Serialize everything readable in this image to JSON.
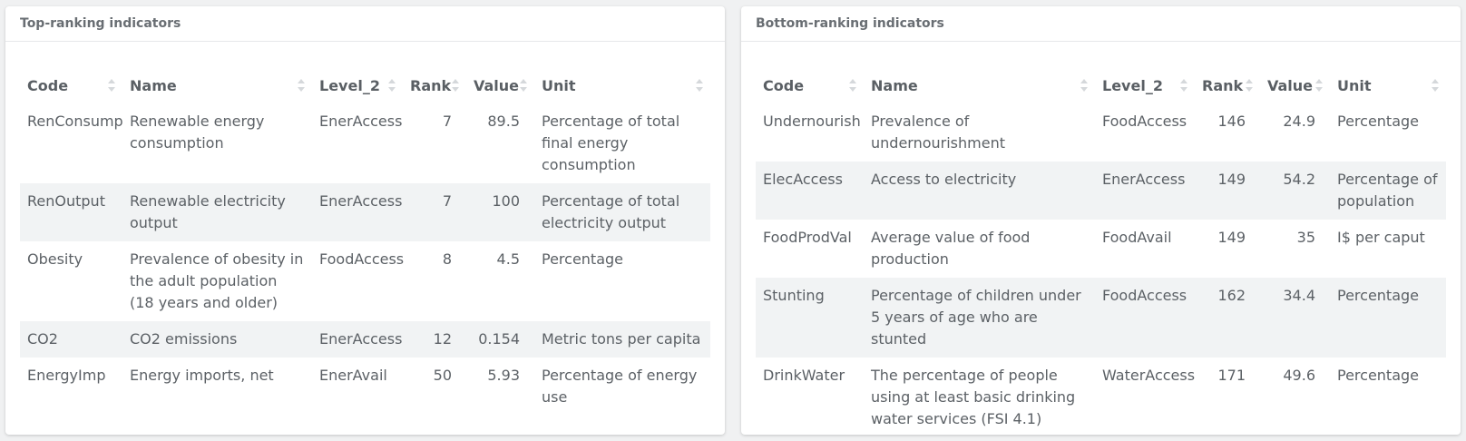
{
  "left_panel": {
    "title": "Top-ranking indicators",
    "columns": [
      "Code",
      "Name",
      "Level_2",
      "Rank",
      "Value",
      "Unit"
    ],
    "rows": [
      {
        "code": "RenConsump",
        "name": "Renewable energy consumption",
        "level_2": "EnerAccess",
        "rank": "7",
        "value": "89.5",
        "unit": "Percentage of total final energy consumption"
      },
      {
        "code": "RenOutput",
        "name": "Renewable electricity output",
        "level_2": "EnerAccess",
        "rank": "7",
        "value": "100",
        "unit": "Percentage of total electricity output"
      },
      {
        "code": "Obesity",
        "name": "Prevalence of obesity in the adult population (18 years and older)",
        "level_2": "FoodAccess",
        "rank": "8",
        "value": "4.5",
        "unit": "Percentage"
      },
      {
        "code": "CO2",
        "name": "CO2 emissions",
        "level_2": "EnerAccess",
        "rank": "12",
        "value": "0.154",
        "unit": "Metric tons per capita"
      },
      {
        "code": "EnergyImp",
        "name": "Energy imports, net",
        "level_2": "EnerAvail",
        "rank": "50",
        "value": "5.93",
        "unit": "Percentage of energy use"
      }
    ]
  },
  "right_panel": {
    "title": "Bottom-ranking indicators",
    "columns": [
      "Code",
      "Name",
      "Level_2",
      "Rank",
      "Value",
      "Unit"
    ],
    "rows": [
      {
        "code": "Undernourish",
        "name": "Prevalence of undernourishment",
        "level_2": "FoodAccess",
        "rank": "146",
        "value": "24.9",
        "unit": "Percentage"
      },
      {
        "code": "ElecAccess",
        "name": "Access to electricity",
        "level_2": "EnerAccess",
        "rank": "149",
        "value": "54.2",
        "unit": "Percentage of population"
      },
      {
        "code": "FoodProdVal",
        "name": "Average value of food production",
        "level_2": "FoodAvail",
        "rank": "149",
        "value": "35",
        "unit": "I$ per caput"
      },
      {
        "code": "Stunting",
        "name": "Percentage of children under 5 years of age who are stunted",
        "level_2": "FoodAccess",
        "rank": "162",
        "value": "34.4",
        "unit": "Percentage"
      },
      {
        "code": "DrinkWater",
        "name": "The percentage of people using at least basic drinking water services (FSI 4.1)",
        "level_2": "WaterAccess",
        "rank": "171",
        "value": "49.6",
        "unit": "Percentage"
      }
    ]
  },
  "colors": {
    "page_bg": "#f0f1f2",
    "card_bg": "#ffffff",
    "striped_row_bg": "#f1f3f4",
    "text": "#5c6166",
    "sort_icon": "#d5d8db"
  }
}
